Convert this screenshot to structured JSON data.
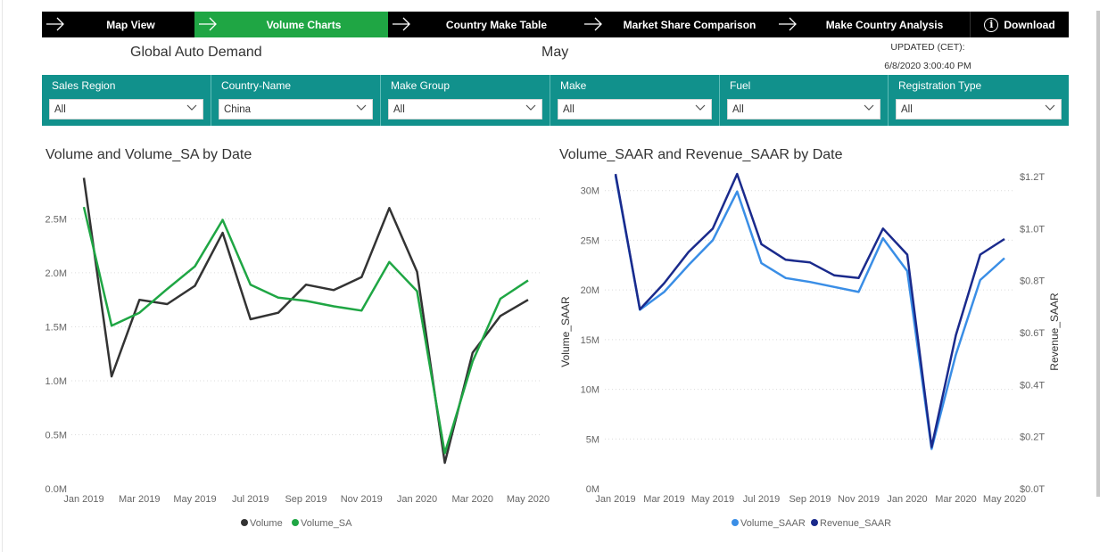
{
  "nav": {
    "tabs": [
      {
        "label": "Map View",
        "active": false
      },
      {
        "label": "Volume Charts",
        "active": true
      },
      {
        "label": "Country Make Table",
        "active": false
      },
      {
        "label": "Market Share Comparison",
        "active": false
      },
      {
        "label": "Make Country Analysis",
        "active": false
      }
    ],
    "download_label": "Download",
    "info_glyph": "i"
  },
  "header": {
    "title": "Global Auto Demand",
    "month": "May",
    "updated_label": "UPDATED (CET):",
    "updated_value": "6/8/2020 3:00:40 PM"
  },
  "filters": [
    {
      "label": "Sales Region",
      "value": "All"
    },
    {
      "label": "Country-Name",
      "value": "China"
    },
    {
      "label": "Make Group",
      "value": "All"
    },
    {
      "label": "Make",
      "value": "All"
    },
    {
      "label": "Fuel",
      "value": "All"
    },
    {
      "label": "Registration Type",
      "value": "All"
    }
  ],
  "colors": {
    "active_tab": "#1fa644",
    "filter_bar": "#11918c",
    "volume": "#333333",
    "volume_sa": "#1fa644",
    "volume_saar": "#3a8ee6",
    "revenue_saar": "#1a2a8c"
  },
  "chart_data": [
    {
      "type": "line",
      "title": "Volume and Volume_SA by Date",
      "x": [
        "Jan 2019",
        "Feb 2019",
        "Mar 2019",
        "Apr 2019",
        "May 2019",
        "Jun 2019",
        "Jul 2019",
        "Aug 2019",
        "Sep 2019",
        "Oct 2019",
        "Nov 2019",
        "Dec 2019",
        "Jan 2020",
        "Feb 2020",
        "Mar 2020",
        "Apr 2020",
        "May 2020"
      ],
      "x_tick_labels": [
        "Jan 2019",
        "Mar 2019",
        "May 2019",
        "Jul 2019",
        "Sep 2019",
        "Nov 2019",
        "Jan 2020",
        "Mar 2020",
        "May 2020"
      ],
      "y_tick_labels": [
        "0.0M",
        "0.5M",
        "1.0M",
        "1.5M",
        "2.0M",
        "2.5M"
      ],
      "ylim": [
        0,
        2.9
      ],
      "series": [
        {
          "name": "Volume",
          "values": [
            2.88,
            1.04,
            1.75,
            1.71,
            1.88,
            2.37,
            1.57,
            1.63,
            1.89,
            1.84,
            1.96,
            2.6,
            2.01,
            0.24,
            1.26,
            1.6,
            1.75
          ]
        },
        {
          "name": "Volume_SA",
          "values": [
            2.61,
            1.51,
            1.63,
            1.85,
            2.06,
            2.49,
            1.89,
            1.77,
            1.74,
            1.69,
            1.65,
            2.1,
            1.83,
            0.33,
            1.18,
            1.76,
            1.93
          ]
        }
      ],
      "legend_position": "bottom"
    },
    {
      "type": "line",
      "title": "Volume_SAAR and Revenue_SAAR by Date",
      "x": [
        "Jan 2019",
        "Feb 2019",
        "Mar 2019",
        "Apr 2019",
        "May 2019",
        "Jun 2019",
        "Jul 2019",
        "Aug 2019",
        "Sep 2019",
        "Oct 2019",
        "Nov 2019",
        "Dec 2019",
        "Jan 2020",
        "Feb 2020",
        "Mar 2020",
        "Apr 2020",
        "May 2020"
      ],
      "x_tick_labels": [
        "Jan 2019",
        "Mar 2019",
        "May 2019",
        "Jul 2019",
        "Sep 2019",
        "Nov 2019",
        "Jan 2020",
        "Mar 2020",
        "May 2020"
      ],
      "ylabel": "Volume_SAAR",
      "y2label": "Revenue_SAAR",
      "y_tick_labels": [
        "0M",
        "5M",
        "10M",
        "15M",
        "20M",
        "25M",
        "30M"
      ],
      "y2_tick_labels": [
        "$0.0T",
        "$0.2T",
        "$0.4T",
        "$0.6T",
        "$0.8T",
        "$1.0T",
        "$1.2T"
      ],
      "ylim": [
        0,
        31.5
      ],
      "y2lim": [
        0,
        1.2
      ],
      "series": [
        {
          "name": "Volume_SAAR",
          "axis": "left",
          "values": [
            31.5,
            18.0,
            19.8,
            22.5,
            25.0,
            29.9,
            22.7,
            21.2,
            20.8,
            20.3,
            19.8,
            25.2,
            21.9,
            4.0,
            13.5,
            21.0,
            23.2
          ]
        },
        {
          "name": "Revenue_SAAR",
          "axis": "right",
          "values": [
            1.21,
            0.69,
            0.79,
            0.91,
            1.0,
            1.21,
            0.94,
            0.88,
            0.87,
            0.82,
            0.81,
            1.0,
            0.9,
            0.16,
            0.59,
            0.9,
            0.96
          ]
        }
      ],
      "legend_position": "bottom"
    }
  ]
}
